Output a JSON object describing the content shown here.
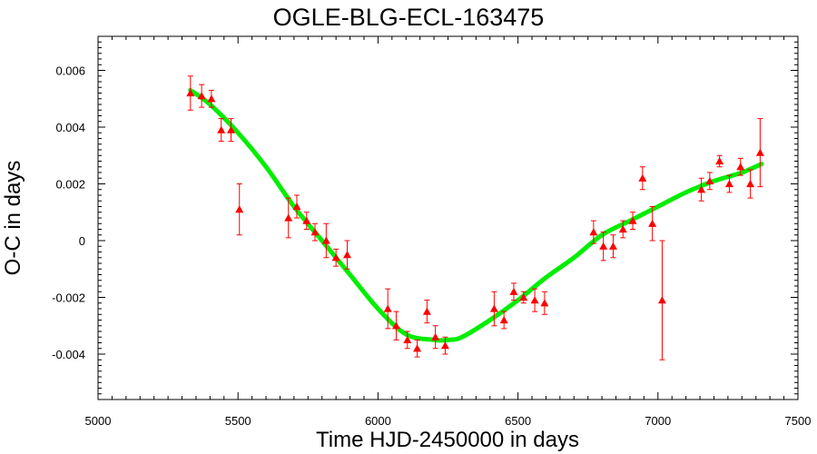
{
  "chart_data": {
    "type": "scatter",
    "title": "OGLE-BLG-ECL-163475",
    "xlabel": "Time HJD-2450000 in days",
    "ylabel": "O-C in days",
    "xlim": [
      5000,
      7500
    ],
    "ylim": [
      -0.0056,
      0.0072
    ],
    "xticks": [
      5000,
      5500,
      6000,
      6500,
      7000,
      7500
    ],
    "xtick_labels": [
      "5000",
      "5500",
      "6000",
      "6500",
      "7000",
      "7500"
    ],
    "yticks": [
      -0.004,
      -0.002,
      0,
      0.002,
      0.004,
      0.006
    ],
    "ytick_labels": [
      "-0.004",
      "-0.002",
      "0",
      "0.002",
      "0.004",
      "0.006"
    ],
    "grid": false,
    "legend": "none",
    "series": [
      {
        "kind": "points_with_errorbars",
        "color": "#ff0000",
        "marker": "triangle",
        "points": [
          {
            "x": 5330,
            "y": 0.0052,
            "err": 0.0006
          },
          {
            "x": 5370,
            "y": 0.0051,
            "err": 0.0004
          },
          {
            "x": 5405,
            "y": 0.005,
            "err": 0.0003
          },
          {
            "x": 5440,
            "y": 0.0039,
            "err": 0.0004
          },
          {
            "x": 5475,
            "y": 0.0039,
            "err": 0.0004
          },
          {
            "x": 5505,
            "y": 0.0011,
            "err": 0.0009
          },
          {
            "x": 5680,
            "y": 0.0008,
            "err": 0.0007
          },
          {
            "x": 5710,
            "y": 0.0012,
            "err": 0.0004
          },
          {
            "x": 5745,
            "y": 0.0007,
            "err": 0.0003
          },
          {
            "x": 5775,
            "y": 0.0003,
            "err": 0.0003
          },
          {
            "x": 5815,
            "y": 0.0,
            "err": 0.0006
          },
          {
            "x": 5850,
            "y": -0.0006,
            "err": 0.0003
          },
          {
            "x": 5890,
            "y": -0.0005,
            "err": 0.0005
          },
          {
            "x": 6035,
            "y": -0.0024,
            "err": 0.0007
          },
          {
            "x": 6065,
            "y": -0.003,
            "err": 0.0005
          },
          {
            "x": 6105,
            "y": -0.0035,
            "err": 0.0003
          },
          {
            "x": 6140,
            "y": -0.0038,
            "err": 0.0003
          },
          {
            "x": 6175,
            "y": -0.0025,
            "err": 0.0004
          },
          {
            "x": 6205,
            "y": -0.0034,
            "err": 0.0004
          },
          {
            "x": 6240,
            "y": -0.0037,
            "err": 0.0003
          },
          {
            "x": 6415,
            "y": -0.0024,
            "err": 0.0006
          },
          {
            "x": 6450,
            "y": -0.0028,
            "err": 0.0003
          },
          {
            "x": 6485,
            "y": -0.0018,
            "err": 0.0003
          },
          {
            "x": 6520,
            "y": -0.002,
            "err": 0.0002
          },
          {
            "x": 6560,
            "y": -0.0021,
            "err": 0.0004
          },
          {
            "x": 6595,
            "y": -0.0022,
            "err": 0.0004
          },
          {
            "x": 6770,
            "y": 0.0003,
            "err": 0.0004
          },
          {
            "x": 6805,
            "y": -0.0002,
            "err": 0.0005
          },
          {
            "x": 6840,
            "y": -0.0002,
            "err": 0.0004
          },
          {
            "x": 6875,
            "y": 0.0004,
            "err": 0.0003
          },
          {
            "x": 6910,
            "y": 0.0007,
            "err": 0.0003
          },
          {
            "x": 6945,
            "y": 0.0022,
            "err": 0.0004
          },
          {
            "x": 6980,
            "y": 0.0006,
            "err": 0.0006
          },
          {
            "x": 7015,
            "y": -0.0021,
            "err": 0.0021
          },
          {
            "x": 7155,
            "y": 0.0018,
            "err": 0.0004
          },
          {
            "x": 7185,
            "y": 0.0021,
            "err": 0.0003
          },
          {
            "x": 7220,
            "y": 0.0028,
            "err": 0.0002
          },
          {
            "x": 7255,
            "y": 0.002,
            "err": 0.0003
          },
          {
            "x": 7295,
            "y": 0.0026,
            "err": 0.0003
          },
          {
            "x": 7330,
            "y": 0.002,
            "err": 0.0005
          },
          {
            "x": 7365,
            "y": 0.0031,
            "err": 0.0012
          }
        ]
      },
      {
        "kind": "fit_curve",
        "color": "#00ee00",
        "x": [
          5330,
          5400,
          5500,
          5600,
          5700,
          5800,
          5900,
          6000,
          6100,
          6200,
          6250,
          6300,
          6400,
          6500,
          6600,
          6700,
          6800,
          6900,
          7000,
          7100,
          7200,
          7300,
          7370
        ],
        "y": [
          0.0053,
          0.0048,
          0.0038,
          0.0026,
          0.0012,
          0.0,
          -0.0012,
          -0.0024,
          -0.0033,
          -0.0035,
          -0.0035,
          -0.0034,
          -0.0028,
          -0.0021,
          -0.0013,
          -0.0006,
          0.0002,
          0.0007,
          0.0012,
          0.0017,
          0.0021,
          0.0024,
          0.0027
        ]
      }
    ]
  }
}
